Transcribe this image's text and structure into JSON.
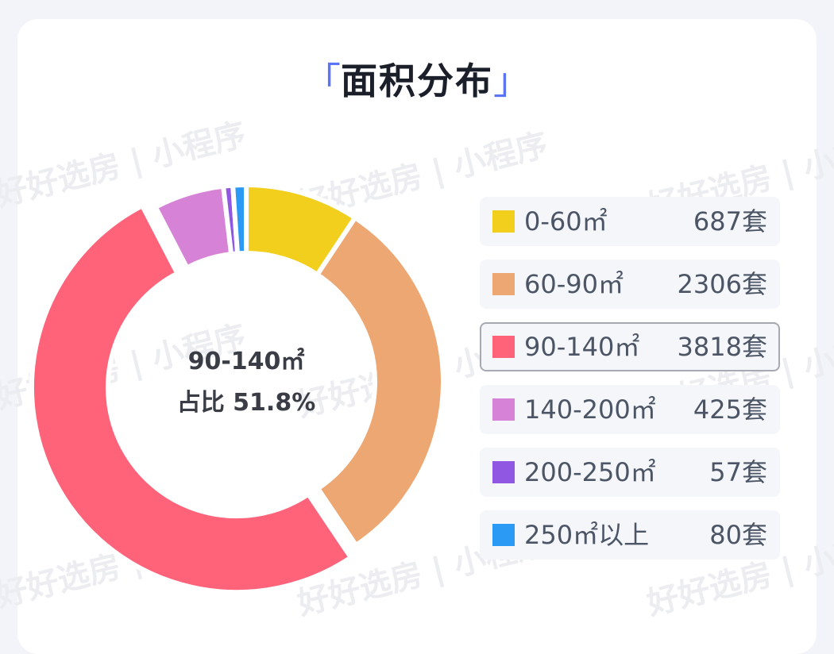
{
  "title": {
    "open": "「",
    "text": "面积分布",
    "close": "」"
  },
  "center": {
    "line1": "90-140㎡",
    "line2": "占比 51.8%"
  },
  "watermark": {
    "text": "好好选房 | 小程序"
  },
  "legend": [
    {
      "label": "0-60㎡",
      "value": "687套",
      "color": "#f2cf1d"
    },
    {
      "label": "60-90㎡",
      "value": "2306套",
      "color": "#eca772"
    },
    {
      "label": "90-140㎡",
      "value": "3818套",
      "color": "#fe637a"
    },
    {
      "label": "140-200㎡",
      "value": "425套",
      "color": "#d682d7"
    },
    {
      "label": "200-250㎡",
      "value": "57套",
      "color": "#9057e3"
    },
    {
      "label": "250㎡以上",
      "value": "80套",
      "color": "#2b9af5"
    }
  ],
  "chart_data": {
    "type": "pie",
    "variant": "donut",
    "categories": [
      "0-60㎡",
      "60-90㎡",
      "90-140㎡",
      "140-200㎡",
      "200-250㎡",
      "250㎡以上"
    ],
    "values": [
      687,
      2306,
      3818,
      425,
      57,
      80
    ],
    "unit": "套",
    "highlighted": "90-140㎡",
    "highlighted_share_percent": 51.8,
    "colors": [
      "#f2cf1d",
      "#eca772",
      "#fe637a",
      "#d682d7",
      "#9057e3",
      "#2b9af5"
    ]
  }
}
